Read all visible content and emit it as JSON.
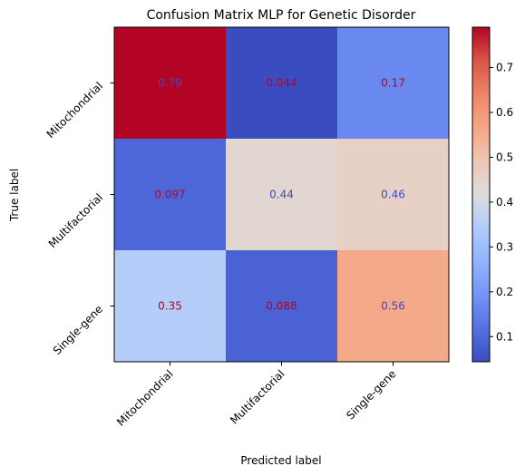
{
  "chart_data": {
    "type": "heatmap",
    "title": "Confusion Matrix MLP for Genetic Disorder",
    "xlabel": "Predicted label",
    "ylabel": "True label",
    "x_categories": [
      "Mitochondrial",
      "Multifactorial",
      "Single-gene"
    ],
    "y_categories": [
      "Mitochondrial",
      "Multifactorial",
      "Single-gene"
    ],
    "values": [
      [
        0.79,
        0.044,
        0.17
      ],
      [
        0.097,
        0.44,
        0.46
      ],
      [
        0.35,
        0.088,
        0.56
      ]
    ],
    "cell_labels": [
      [
        "0.79",
        "0.044",
        "0.17"
      ],
      [
        "0.097",
        "0.44",
        "0.46"
      ],
      [
        "0.35",
        "0.088",
        "0.56"
      ]
    ],
    "colormap": "coolwarm",
    "color_range": [
      0.044,
      0.79
    ],
    "colorbar_ticks": [
      "0.1",
      "0.2",
      "0.3",
      "0.4",
      "0.5",
      "0.6",
      "0.7"
    ],
    "label_colors": {
      "on_warm": "#b40426",
      "on_cool": "#3b4cc0"
    }
  }
}
